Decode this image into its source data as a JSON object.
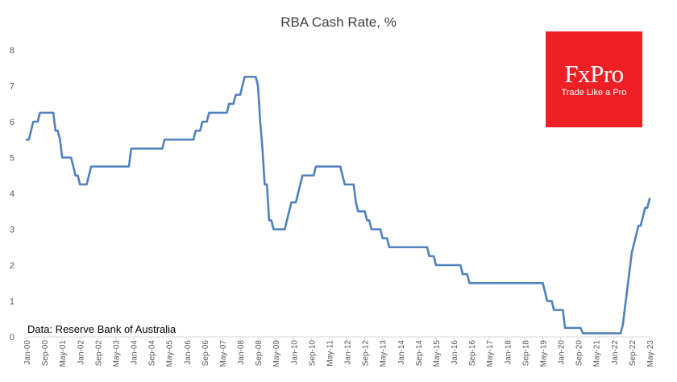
{
  "colors": {
    "line": "#4f81bd",
    "axis_text": "#595959",
    "axis_line": "#d9d9d9",
    "logo_bg": "#ee2026",
    "logo_text": "#ffffff"
  },
  "logo": {
    "wordmark": "FxPro",
    "tagline": "Trade Like a Pro"
  },
  "source_note": "Data: Reserve Bank of Australia",
  "chart_data": {
    "type": "line",
    "title": "RBA Cash Rate, %",
    "xlabel": "",
    "ylabel": "",
    "ylim": [
      0,
      8
    ],
    "yticks": [
      0,
      1,
      2,
      3,
      4,
      5,
      6,
      7,
      8
    ],
    "xlim": [
      "2000-01",
      "2023-05"
    ],
    "xticks": [
      {
        "x": "2000-01",
        "label": "Jan-00"
      },
      {
        "x": "2000-09",
        "label": "Sep-00"
      },
      {
        "x": "2001-05",
        "label": "May-01"
      },
      {
        "x": "2002-01",
        "label": "Jan-02"
      },
      {
        "x": "2002-09",
        "label": "Sep-02"
      },
      {
        "x": "2003-05",
        "label": "May-03"
      },
      {
        "x": "2004-01",
        "label": "Jan-04"
      },
      {
        "x": "2004-09",
        "label": "Sep-04"
      },
      {
        "x": "2005-05",
        "label": "May-05"
      },
      {
        "x": "2006-01",
        "label": "Jan-06"
      },
      {
        "x": "2006-09",
        "label": "Sep-06"
      },
      {
        "x": "2007-05",
        "label": "May-07"
      },
      {
        "x": "2008-01",
        "label": "Jan-08"
      },
      {
        "x": "2008-09",
        "label": "Sep-08"
      },
      {
        "x": "2009-05",
        "label": "May-09"
      },
      {
        "x": "2010-01",
        "label": "Jan-10"
      },
      {
        "x": "2010-09",
        "label": "Sep-10"
      },
      {
        "x": "2011-05",
        "label": "May-11"
      },
      {
        "x": "2012-01",
        "label": "Jan-12"
      },
      {
        "x": "2012-09",
        "label": "Sep-12"
      },
      {
        "x": "2013-05",
        "label": "May-13"
      },
      {
        "x": "2014-01",
        "label": "Jan-14"
      },
      {
        "x": "2014-09",
        "label": "Sep-14"
      },
      {
        "x": "2015-05",
        "label": "May-15"
      },
      {
        "x": "2016-01",
        "label": "Jan-16"
      },
      {
        "x": "2016-09",
        "label": "Sep-16"
      },
      {
        "x": "2017-05",
        "label": "May-17"
      },
      {
        "x": "2018-01",
        "label": "Jan-18"
      },
      {
        "x": "2018-09",
        "label": "Sep-18"
      },
      {
        "x": "2019-05",
        "label": "May-19"
      },
      {
        "x": "2020-01",
        "label": "Jan-20"
      },
      {
        "x": "2020-09",
        "label": "Sep-20"
      },
      {
        "x": "2021-05",
        "label": "May-21"
      },
      {
        "x": "2022-01",
        "label": "Jan-22"
      },
      {
        "x": "2022-09",
        "label": "Sep-22"
      },
      {
        "x": "2023-05",
        "label": "May-23"
      }
    ],
    "grid": false,
    "legend": "none",
    "series": [
      {
        "color": "#4f81bd",
        "points": [
          [
            "2000-01",
            5.5
          ],
          [
            "2000-02",
            5.5
          ],
          [
            "2000-03",
            5.75
          ],
          [
            "2000-04",
            6.0
          ],
          [
            "2000-05",
            6.0
          ],
          [
            "2000-06",
            6.0
          ],
          [
            "2000-07",
            6.25
          ],
          [
            "2000-08",
            6.25
          ],
          [
            "2000-09",
            6.25
          ],
          [
            "2000-10",
            6.25
          ],
          [
            "2000-11",
            6.25
          ],
          [
            "2000-12",
            6.25
          ],
          [
            "2001-01",
            6.25
          ],
          [
            "2001-02",
            5.75
          ],
          [
            "2001-03",
            5.75
          ],
          [
            "2001-04",
            5.5
          ],
          [
            "2001-05",
            5.0
          ],
          [
            "2001-06",
            5.0
          ],
          [
            "2001-07",
            5.0
          ],
          [
            "2001-08",
            5.0
          ],
          [
            "2001-09",
            5.0
          ],
          [
            "2001-10",
            4.75
          ],
          [
            "2001-11",
            4.5
          ],
          [
            "2001-12",
            4.5
          ],
          [
            "2002-01",
            4.25
          ],
          [
            "2002-02",
            4.25
          ],
          [
            "2002-03",
            4.25
          ],
          [
            "2002-04",
            4.25
          ],
          [
            "2002-05",
            4.5
          ],
          [
            "2002-06",
            4.75
          ],
          [
            "2002-07",
            4.75
          ],
          [
            "2003-11",
            4.75
          ],
          [
            "2003-12",
            5.25
          ],
          [
            "2004-01",
            5.25
          ],
          [
            "2005-02",
            5.25
          ],
          [
            "2005-03",
            5.5
          ],
          [
            "2006-04",
            5.5
          ],
          [
            "2006-05",
            5.75
          ],
          [
            "2006-07",
            5.75
          ],
          [
            "2006-08",
            6.0
          ],
          [
            "2006-10",
            6.0
          ],
          [
            "2006-11",
            6.25
          ],
          [
            "2007-07",
            6.25
          ],
          [
            "2007-08",
            6.5
          ],
          [
            "2007-10",
            6.5
          ],
          [
            "2007-11",
            6.75
          ],
          [
            "2008-01",
            6.75
          ],
          [
            "2008-02",
            7.0
          ],
          [
            "2008-03",
            7.25
          ],
          [
            "2008-08",
            7.25
          ],
          [
            "2008-09",
            7.0
          ],
          [
            "2008-10",
            6.0
          ],
          [
            "2008-11",
            5.25
          ],
          [
            "2008-12",
            4.25
          ],
          [
            "2009-01",
            4.25
          ],
          [
            "2009-02",
            3.25
          ],
          [
            "2009-03",
            3.25
          ],
          [
            "2009-04",
            3.0
          ],
          [
            "2009-09",
            3.0
          ],
          [
            "2009-10",
            3.25
          ],
          [
            "2009-11",
            3.5
          ],
          [
            "2009-12",
            3.75
          ],
          [
            "2010-02",
            3.75
          ],
          [
            "2010-03",
            4.0
          ],
          [
            "2010-04",
            4.25
          ],
          [
            "2010-05",
            4.5
          ],
          [
            "2010-10",
            4.5
          ],
          [
            "2010-11",
            4.75
          ],
          [
            "2011-10",
            4.75
          ],
          [
            "2011-11",
            4.5
          ],
          [
            "2011-12",
            4.25
          ],
          [
            "2012-04",
            4.25
          ],
          [
            "2012-05",
            3.75
          ],
          [
            "2012-06",
            3.5
          ],
          [
            "2012-09",
            3.5
          ],
          [
            "2012-10",
            3.25
          ],
          [
            "2012-11",
            3.25
          ],
          [
            "2012-12",
            3.0
          ],
          [
            "2013-04",
            3.0
          ],
          [
            "2013-05",
            2.75
          ],
          [
            "2013-07",
            2.75
          ],
          [
            "2013-08",
            2.5
          ],
          [
            "2015-01",
            2.5
          ],
          [
            "2015-02",
            2.25
          ],
          [
            "2015-04",
            2.25
          ],
          [
            "2015-05",
            2.0
          ],
          [
            "2016-04",
            2.0
          ],
          [
            "2016-05",
            1.75
          ],
          [
            "2016-07",
            1.75
          ],
          [
            "2016-08",
            1.5
          ],
          [
            "2019-05",
            1.5
          ],
          [
            "2019-06",
            1.25
          ],
          [
            "2019-07",
            1.0
          ],
          [
            "2019-09",
            1.0
          ],
          [
            "2019-10",
            0.75
          ],
          [
            "2020-02",
            0.75
          ],
          [
            "2020-03",
            0.25
          ],
          [
            "2020-10",
            0.25
          ],
          [
            "2020-11",
            0.1
          ],
          [
            "2022-04",
            0.1
          ],
          [
            "2022-05",
            0.35
          ],
          [
            "2022-06",
            0.85
          ],
          [
            "2022-07",
            1.35
          ],
          [
            "2022-08",
            1.85
          ],
          [
            "2022-09",
            2.35
          ],
          [
            "2022-10",
            2.6
          ],
          [
            "2022-11",
            2.85
          ],
          [
            "2022-12",
            3.1
          ],
          [
            "2023-01",
            3.1
          ],
          [
            "2023-02",
            3.35
          ],
          [
            "2023-03",
            3.6
          ],
          [
            "2023-04",
            3.6
          ],
          [
            "2023-05",
            3.85
          ]
        ]
      }
    ]
  }
}
